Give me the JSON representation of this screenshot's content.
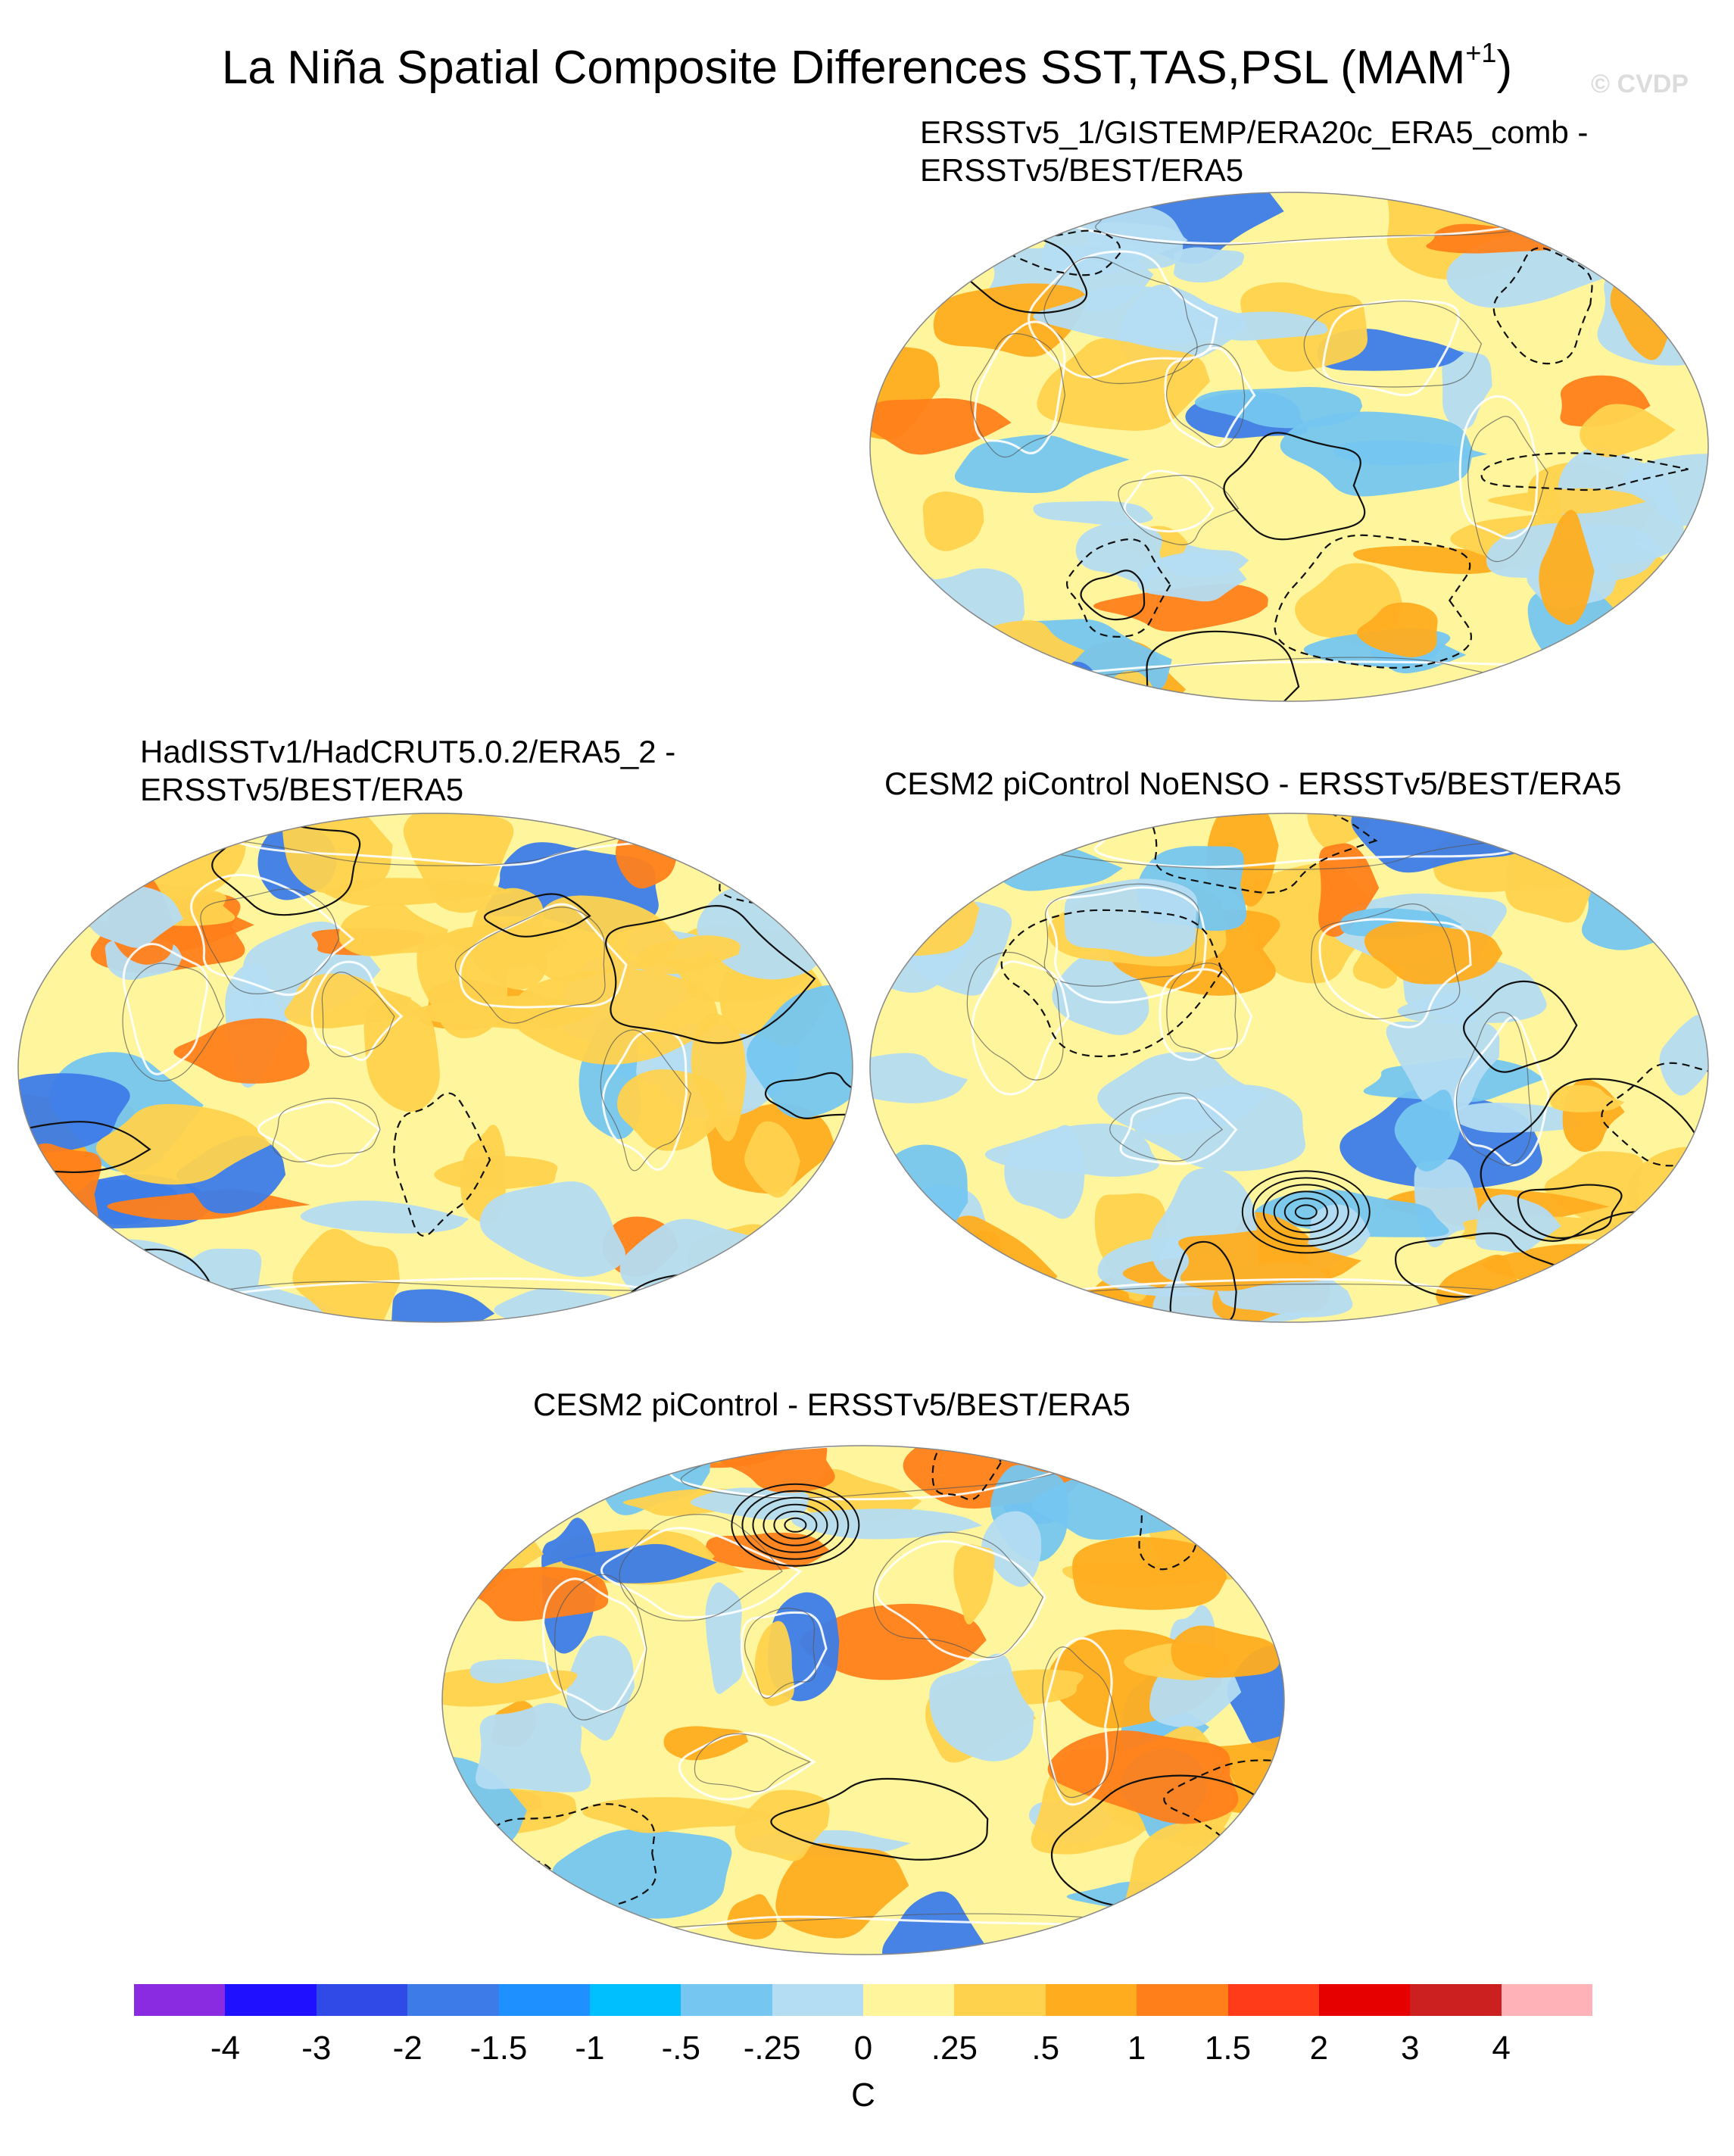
{
  "title": {
    "text": "La Niña Spatial Composite Differences SST,TAS,PSL (MAM",
    "sup": "+1",
    "close": ")"
  },
  "watermark": "© CVDP",
  "panels": [
    {
      "title_line1": "ERSSTv5_1/GISTEMP/ERA20c_ERA5_comb -",
      "title_line2": "ERSSTv5/BEST/ERA5"
    },
    {
      "title_line1": "HadISSTv1/HadCRUT5.0.2/ERA5_2 -",
      "title_line2": "ERSSTv5/BEST/ERA5"
    },
    {
      "title_line1": "CESM2 piControl NoENSO - ERSSTv5/BEST/ERA5",
      "title_line2": ""
    },
    {
      "title_line1": "CESM2 piControl - ERSSTv5/BEST/ERA5",
      "title_line2": ""
    }
  ],
  "colorbar": {
    "colors": [
      "#8a2be2",
      "#1f10ff",
      "#2f4ae6",
      "#3d7ce8",
      "#1e90ff",
      "#00bfff",
      "#75c6f0",
      "#b4dcf2",
      "#fff59d",
      "#ffd24d",
      "#ffad1f",
      "#ff7f1a",
      "#ff3b1a",
      "#e60000",
      "#cc1f1f",
      "#ffb3b8"
    ],
    "labels": [
      "-4",
      "-3",
      "-2",
      "-1.5",
      "-1",
      "-.5",
      "-.25",
      "0",
      ".25",
      ".5",
      "1",
      "1.5",
      "2",
      "3",
      "4"
    ],
    "unit": "C"
  },
  "palette": {
    "cold_strong": "#3d7ce8",
    "cold": "#75c6f0",
    "cool": "#b4dcf2",
    "warm": "#fff59d",
    "warmer": "#ffd24d",
    "hot": "#ffad1f",
    "hotter": "#ff7f1a"
  }
}
